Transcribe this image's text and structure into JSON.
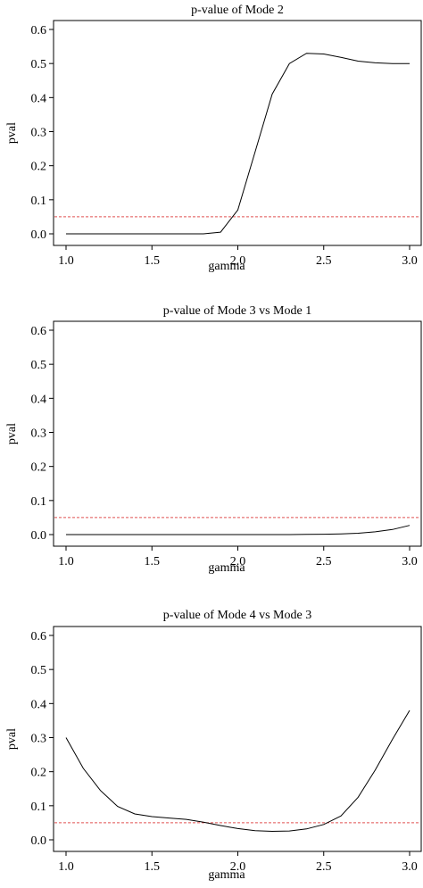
{
  "chart_data": [
    {
      "type": "line",
      "title": "p-value of Mode 2",
      "xlabel": "gamma",
      "ylabel": "pval",
      "xlim": [
        1.0,
        3.0
      ],
      "ylim": [
        0.0,
        0.6
      ],
      "xticks": [
        "1.0",
        "1.5",
        "2.0",
        "2.5",
        "3.0"
      ],
      "yticks": [
        "0.0",
        "0.1",
        "0.2",
        "0.3",
        "0.4",
        "0.5",
        "0.6"
      ],
      "x": [
        1.0,
        1.1,
        1.2,
        1.3,
        1.4,
        1.5,
        1.6,
        1.7,
        1.8,
        1.9,
        2.0,
        2.1,
        2.2,
        2.3,
        2.4,
        2.5,
        2.6,
        2.7,
        2.8,
        2.9,
        3.0
      ],
      "values": [
        0.0,
        0.0,
        0.0,
        0.0,
        0.0,
        0.0,
        0.0,
        0.0,
        0.0,
        0.005,
        0.07,
        0.24,
        0.41,
        0.5,
        0.53,
        0.528,
        0.518,
        0.507,
        0.502,
        0.5,
        0.5
      ],
      "reference_line": 0.05,
      "line_color": "#000000",
      "reference_color": "#e05050"
    },
    {
      "type": "line",
      "title": "p-value of Mode 3 vs Mode 1",
      "xlabel": "gamma",
      "ylabel": "pval",
      "xlim": [
        1.0,
        3.0
      ],
      "ylim": [
        0.0,
        0.6
      ],
      "xticks": [
        "1.0",
        "1.5",
        "2.0",
        "2.5",
        "3.0"
      ],
      "yticks": [
        "0.0",
        "0.1",
        "0.2",
        "0.3",
        "0.4",
        "0.5",
        "0.6"
      ],
      "x": [
        1.0,
        1.1,
        1.2,
        1.3,
        1.4,
        1.5,
        1.6,
        1.7,
        1.8,
        1.9,
        2.0,
        2.1,
        2.2,
        2.3,
        2.4,
        2.5,
        2.6,
        2.7,
        2.8,
        2.9,
        3.0
      ],
      "values": [
        0.0,
        0.0,
        0.0,
        0.0,
        0.0,
        0.0,
        0.0,
        0.0,
        0.0,
        0.0,
        0.0,
        0.0,
        0.0,
        0.0,
        0.0005,
        0.001,
        0.002,
        0.004,
        0.008,
        0.015,
        0.027
      ],
      "reference_line": 0.05,
      "line_color": "#000000",
      "reference_color": "#e05050"
    },
    {
      "type": "line",
      "title": "p-value of Mode 4 vs Mode 3",
      "xlabel": "gamma",
      "ylabel": "pval",
      "xlim": [
        1.0,
        3.0
      ],
      "ylim": [
        0.0,
        0.6
      ],
      "xticks": [
        "1.0",
        "1.5",
        "2.0",
        "2.5",
        "3.0"
      ],
      "yticks": [
        "0.0",
        "0.1",
        "0.2",
        "0.3",
        "0.4",
        "0.5",
        "0.6"
      ],
      "x": [
        1.0,
        1.1,
        1.2,
        1.3,
        1.4,
        1.5,
        1.6,
        1.7,
        1.8,
        1.9,
        2.0,
        2.1,
        2.2,
        2.3,
        2.4,
        2.5,
        2.6,
        2.7,
        2.8,
        2.9,
        3.0
      ],
      "values": [
        0.3,
        0.21,
        0.145,
        0.098,
        0.076,
        0.068,
        0.064,
        0.06,
        0.052,
        0.042,
        0.033,
        0.027,
        0.025,
        0.026,
        0.032,
        0.045,
        0.07,
        0.125,
        0.205,
        0.295,
        0.38
      ],
      "reference_line": 0.05,
      "line_color": "#000000",
      "reference_color": "#e05050"
    }
  ]
}
